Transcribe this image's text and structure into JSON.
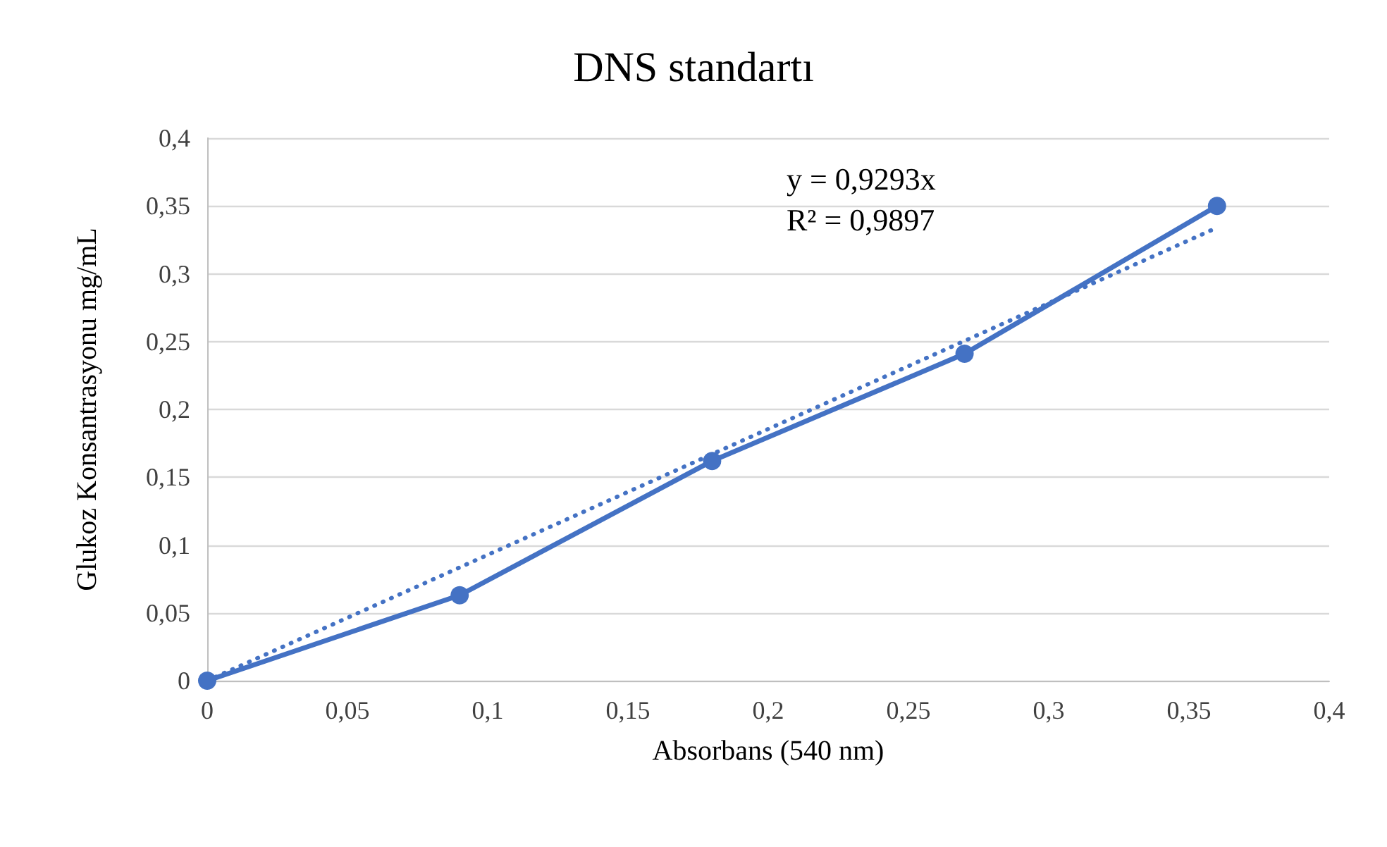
{
  "chart_data": {
    "type": "line",
    "title": "DNS standartı",
    "xlabel": "Absorbans (540 nm)",
    "ylabel": "Glukoz Konsantrasyonu mg/mL",
    "x": [
      0,
      0.09,
      0.18,
      0.27,
      0.36
    ],
    "series": [
      {
        "color": "#4472c4",
        "values": [
          0,
          0.063,
          0.162,
          0.241,
          0.35
        ],
        "marker": "circle",
        "line_style": "solid"
      },
      {
        "type": "line",
        "x": [
          0,
          0.36
        ],
        "color": "#4472c4",
        "values": [
          0,
          0.334
        ],
        "marker": "none",
        "line_style": "dotted"
      }
    ],
    "xlim": [
      0,
      0.4
    ],
    "xticks": [
      0,
      {
        "value": 0.05,
        "label": "0,05"
      },
      {
        "value": 0.1,
        "label": "0,1"
      },
      {
        "value": 0.15,
        "label": "0,15"
      },
      {
        "value": 0.2,
        "label": "0,2"
      },
      {
        "value": 0.25,
        "label": "0,25"
      },
      {
        "value": 0.3,
        "label": "0,3"
      },
      {
        "value": 0.35,
        "label": "0,35"
      },
      {
        "value": 0.4,
        "label": "0,4"
      }
    ],
    "ylim": [
      0,
      0.4
    ],
    "yticks": [
      0,
      {
        "value": 0.05,
        "label": "0,05"
      },
      {
        "value": 0.1,
        "label": "0,1"
      },
      {
        "value": 0.15,
        "label": "0,15"
      },
      {
        "value": 0.2,
        "label": "0,2"
      },
      {
        "value": 0.25,
        "label": "0,25"
      },
      {
        "value": 0.3,
        "label": "0,3"
      },
      {
        "value": 0.35,
        "label": "0,35"
      },
      {
        "value": 0.4,
        "label": "0,4"
      }
    ],
    "grid": "y",
    "annotations": [
      "y = 0,9293x",
      "R² = 0,9897"
    ]
  }
}
